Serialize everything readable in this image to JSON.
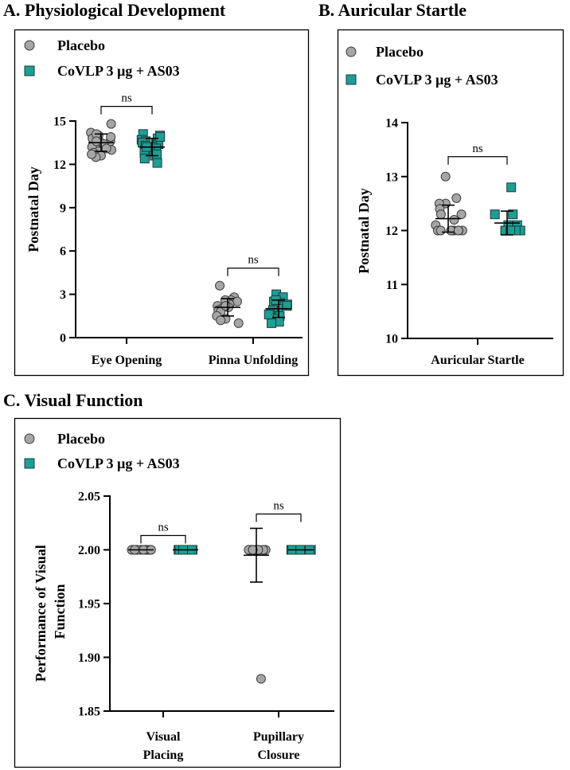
{
  "colors": {
    "placebo": "#a6a6a6",
    "vaccine": "#1e9e94"
  },
  "legend": {
    "placebo": "Placebo",
    "vaccine": "CoVLP 3 µg + AS03"
  },
  "chart_data": [
    {
      "id": "a",
      "type": "scatter",
      "title": "A. Physiological Development",
      "ylabel": "Postnatal Day",
      "ylim": [
        0,
        15
      ],
      "yticks": [
        0,
        3,
        6,
        9,
        12,
        15
      ],
      "ytick_labels": [
        "0",
        "3",
        "6",
        "9",
        "12",
        "15"
      ],
      "categories": [
        "Eye Opening",
        "Pinna Unfolding"
      ],
      "significance": [
        "ns",
        "ns"
      ],
      "series": [
        {
          "name": "Placebo",
          "values": [
            [
              13.6,
              14.8,
              14.2,
              14.0,
              13.9,
              13.8,
              13.7,
              13.5,
              13.4,
              13.3,
              13.2,
              13.0,
              12.9,
              12.8,
              12.6,
              12.5,
              12.7,
              13.1,
              14.1,
              13.6
            ],
            [
              3.6,
              2.8,
              2.6,
              2.5,
              2.4,
              2.3,
              2.2,
              2.1,
              2.0,
              1.9,
              1.8,
              1.5,
              1.3,
              1.0,
              2.6,
              2.2,
              1.2
            ]
          ],
          "mean": [
            13.5,
            2.1
          ],
          "sd": [
            0.6,
            0.6
          ]
        },
        {
          "name": "CoVLP 3 µg + AS03",
          "values": [
            [
              14.1,
              14.0,
              13.8,
              13.7,
              13.6,
              13.5,
              13.4,
              13.3,
              13.2,
              13.1,
              13.0,
              12.9,
              12.8,
              12.6,
              12.4,
              12.1,
              13.9,
              13.2,
              12.7
            ],
            [
              3.0,
              2.8,
              2.5,
              2.4,
              2.3,
              2.2,
              2.0,
              1.9,
              1.7,
              1.5,
              1.3,
              1.1,
              1.0,
              2.6,
              1.6,
              2.2
            ]
          ],
          "mean": [
            13.2,
            2.0
          ],
          "sd": [
            0.6,
            0.6
          ]
        }
      ]
    },
    {
      "id": "b",
      "type": "scatter",
      "title": "B. Auricular Startle",
      "ylabel": "Postnatal Day",
      "ylim": [
        10,
        14
      ],
      "yticks": [
        10,
        11,
        12,
        13,
        14
      ],
      "ytick_labels": [
        "10",
        "11",
        "12",
        "13",
        "14"
      ],
      "categories": [
        "Auricular Startle"
      ],
      "significance": [
        "ns"
      ],
      "series": [
        {
          "name": "Placebo",
          "values": [
            [
              13.0,
              12.6,
              12.5,
              12.5,
              12.4,
              12.3,
              12.3,
              12.2,
              12.1,
              12.0,
              12.0,
              12.0,
              12.0,
              12.0,
              12.0,
              12.0,
              12.0,
              12.0
            ]
          ],
          "mean": [
            12.22
          ],
          "sd": [
            0.25
          ]
        },
        {
          "name": "CoVLP 3 µg + AS03",
          "values": [
            [
              12.8,
              12.3,
              12.3,
              12.1,
              12.1,
              12.0,
              12.0,
              12.0,
              12.0,
              12.0,
              12.0,
              12.0
            ]
          ],
          "mean": [
            12.14
          ],
          "sd": [
            0.22
          ]
        }
      ]
    },
    {
      "id": "c",
      "type": "scatter",
      "title": "C. Visual Function",
      "ylabel": "Performance of Visual Function",
      "ylim": [
        1.85,
        2.05
      ],
      "yticks": [
        1.85,
        1.9,
        1.95,
        2.0,
        2.05
      ],
      "ytick_labels": [
        "1.85",
        "1.90",
        "1.95",
        "2.00",
        "2.05"
      ],
      "categories": [
        "Visual Placing",
        "Pupillary Closure"
      ],
      "significance": [
        "ns",
        "ns"
      ],
      "series": [
        {
          "name": "Placebo",
          "values": [
            [
              2.0,
              2.0,
              2.0,
              2.0,
              2.0,
              2.0,
              2.0,
              2.0,
              2.0,
              2.0,
              2.0,
              2.0,
              2.0,
              2.0,
              2.0,
              2.0,
              2.0,
              2.0
            ],
            [
              2.0,
              2.0,
              2.0,
              2.0,
              2.0,
              2.0,
              2.0,
              2.0,
              2.0,
              2.0,
              2.0,
              2.0,
              2.0,
              2.0,
              2.0,
              2.0,
              1.88
            ]
          ],
          "mean": [
            2.0,
            1.995
          ],
          "sd": [
            0.0,
            0.025
          ]
        },
        {
          "name": "CoVLP 3 µg + AS03",
          "values": [
            [
              2.0,
              2.0,
              2.0,
              2.0,
              2.0,
              2.0,
              2.0,
              2.0,
              2.0,
              2.0,
              2.0,
              2.0
            ],
            [
              2.0,
              2.0,
              2.0,
              2.0,
              2.0,
              2.0,
              2.0,
              2.0,
              2.0,
              2.0,
              2.0,
              2.0
            ]
          ],
          "mean": [
            2.0,
            2.0
          ],
          "sd": [
            0.0,
            0.0
          ]
        }
      ]
    }
  ]
}
